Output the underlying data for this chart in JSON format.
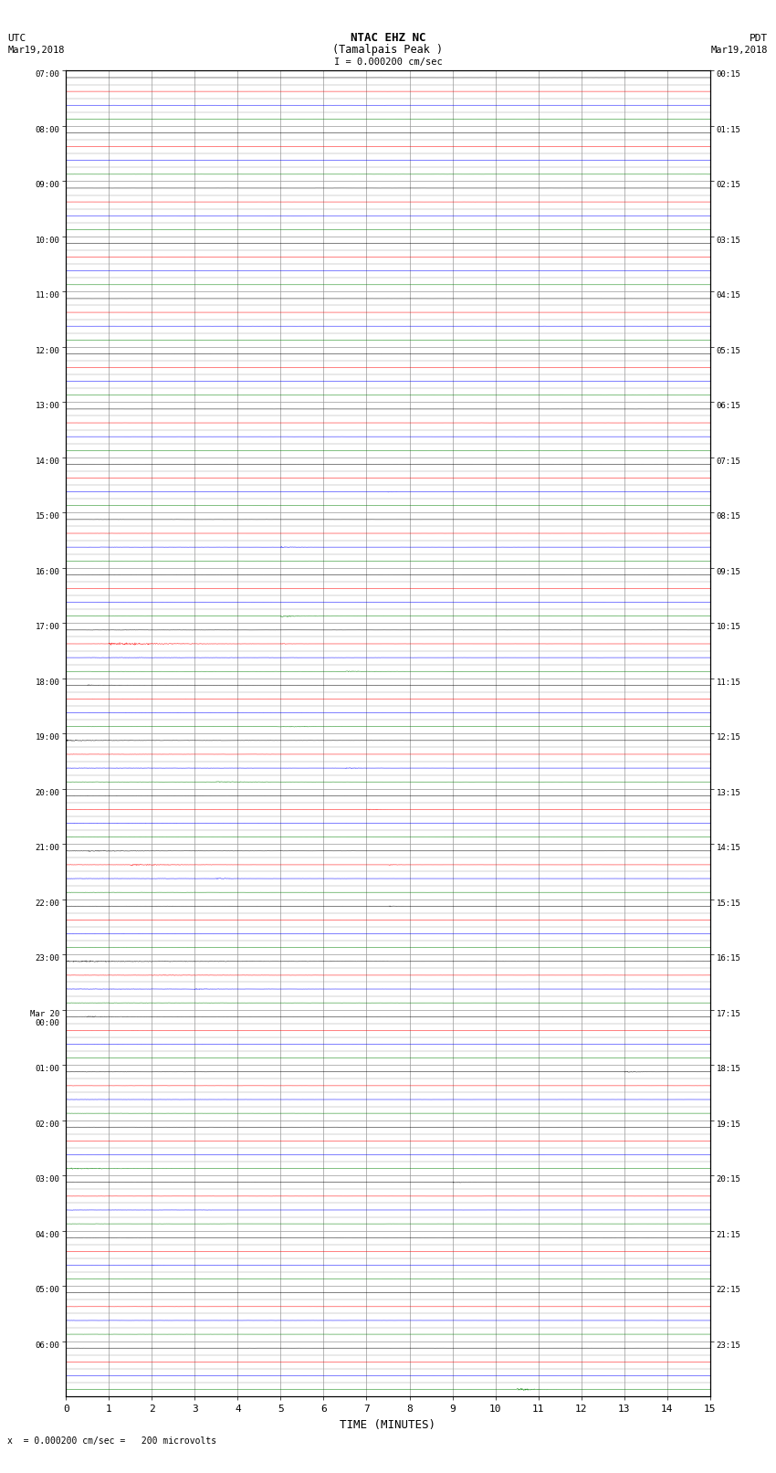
{
  "title_line1": "NTAC EHZ NC",
  "title_line2": "(Tamalpais Peak )",
  "title_line3": "I = 0.000200 cm/sec",
  "left_header_line1": "UTC",
  "left_header_line2": "Mar19,2018",
  "right_header_line1": "PDT",
  "right_header_line2": "Mar19,2018",
  "bottom_label": "TIME (MINUTES)",
  "bottom_note": "x  = 0.000200 cm/sec =   200 microvolts",
  "x_ticks": [
    0,
    1,
    2,
    3,
    4,
    5,
    6,
    7,
    8,
    9,
    10,
    11,
    12,
    13,
    14,
    15
  ],
  "utc_labels": [
    "07:00",
    "08:00",
    "09:00",
    "10:00",
    "11:00",
    "12:00",
    "13:00",
    "14:00",
    "15:00",
    "16:00",
    "17:00",
    "18:00",
    "19:00",
    "20:00",
    "21:00",
    "22:00",
    "23:00",
    "Mar 20\n00:00",
    "01:00",
    "02:00",
    "03:00",
    "04:00",
    "05:00",
    "06:00"
  ],
  "pdt_labels": [
    "00:15",
    "01:15",
    "02:15",
    "03:15",
    "04:15",
    "05:15",
    "06:15",
    "07:15",
    "08:15",
    "09:15",
    "10:15",
    "11:15",
    "12:15",
    "13:15",
    "14:15",
    "15:15",
    "16:15",
    "17:15",
    "18:15",
    "19:15",
    "20:15",
    "21:15",
    "22:15",
    "23:15"
  ],
  "num_rows": 24,
  "traces_per_row": 4,
  "trace_colors": [
    "black",
    "red",
    "blue",
    "green"
  ],
  "background_color": "white",
  "grid_color": "#999999",
  "noise_seed": 42,
  "fig_width": 8.5,
  "fig_height": 16.13,
  "base_noise": 0.003,
  "base_amp_scale": 0.06
}
